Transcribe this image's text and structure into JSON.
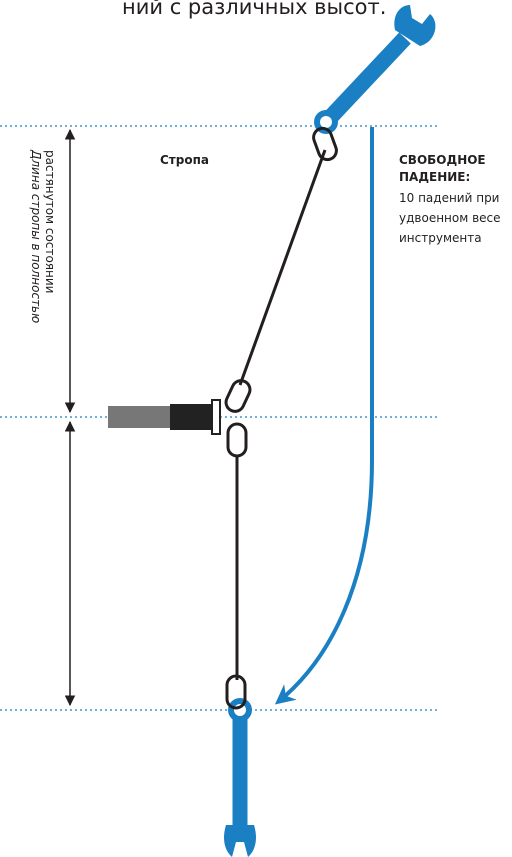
{
  "header": {
    "text": "ний с различных высот."
  },
  "labels": {
    "length": [
      "Длина стропы в полностью",
      "растянутом состоянии"
    ],
    "lanyard": "Стропа",
    "free_fall": {
      "title": [
        "СВОБОДНОЕ",
        "ПАДЕНИЕ:"
      ],
      "text": [
        "10 падений при",
        "удвоенном весе",
        "инструмента"
      ]
    }
  }
}
